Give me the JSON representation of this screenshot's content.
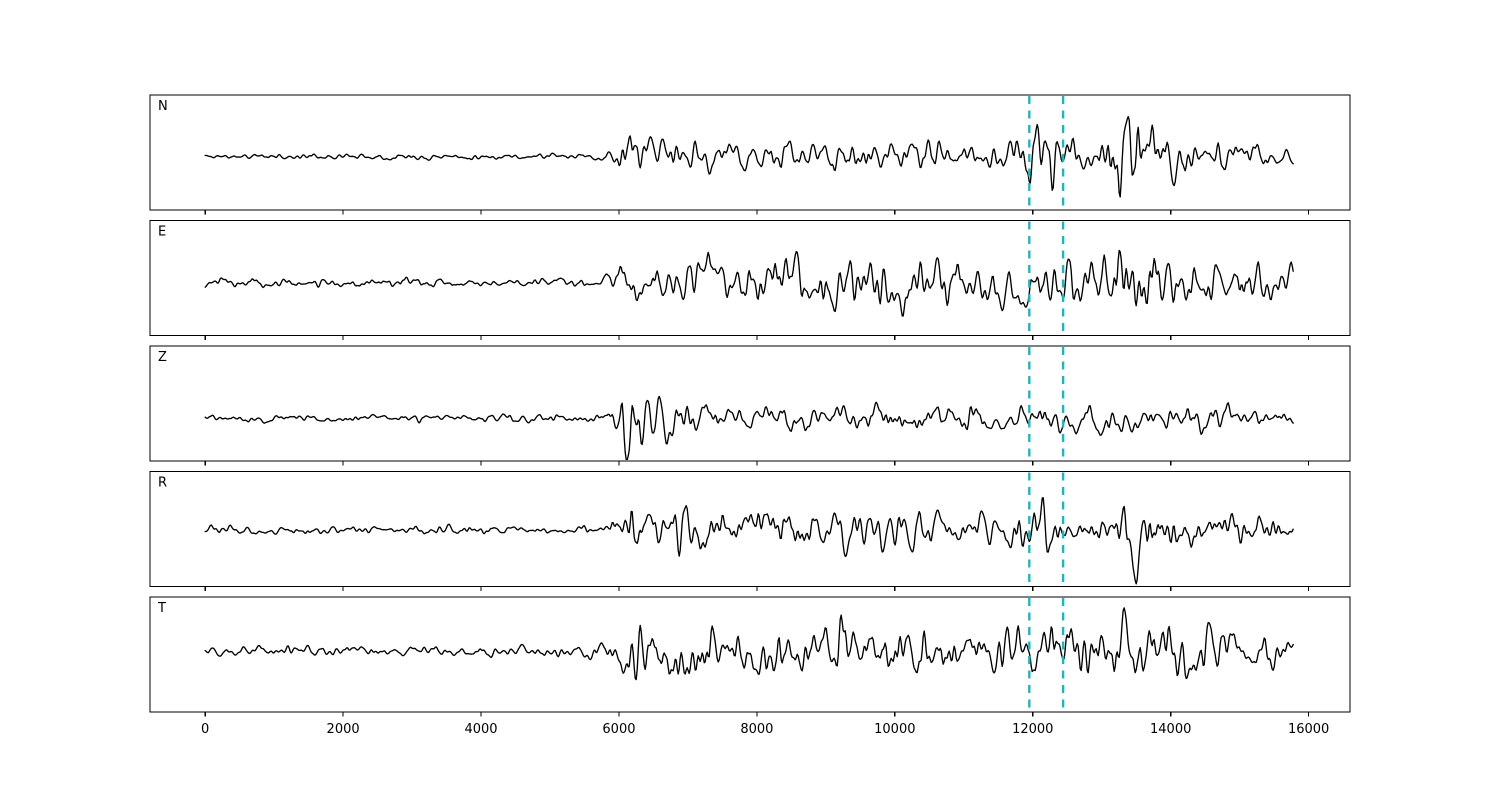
{
  "figure": {
    "background_color": "#ffffff",
    "description": "Five-panel seismogram waveform figure with components N, E, Z, R, T and two dashed cyan phase-pick marker lines"
  },
  "chart_data": {
    "type": "line",
    "title": "",
    "xlabel": "",
    "ylabel": "",
    "grid": false,
    "legend": "none",
    "x_ticks": [
      0,
      2000,
      4000,
      6000,
      8000,
      10000,
      12000,
      14000,
      16000
    ],
    "x_axis_range": [
      -800,
      16600
    ],
    "trace_x_range": [
      0,
      15784
    ],
    "trace_color": "#000000",
    "marker_lines": {
      "x_values": [
        11950,
        12440
      ],
      "color": "#10bcc2",
      "line_style": "dashed"
    },
    "panels": [
      {
        "label": "N",
        "seed": 11,
        "baseline_offset": 4,
        "envelope": [
          [
            0,
            2.5
          ],
          [
            5200,
            3
          ],
          [
            5750,
            3.5
          ],
          [
            5950,
            7
          ],
          [
            6080,
            24
          ],
          [
            6180,
            27
          ],
          [
            6350,
            15
          ],
          [
            6800,
            16
          ],
          [
            7400,
            12
          ],
          [
            8000,
            13
          ],
          [
            8600,
            12
          ],
          [
            9300,
            17
          ],
          [
            9800,
            13
          ],
          [
            10600,
            13
          ],
          [
            11300,
            12
          ],
          [
            11800,
            16
          ],
          [
            12000,
            30
          ],
          [
            12250,
            29
          ],
          [
            12500,
            21
          ],
          [
            12800,
            13
          ],
          [
            13050,
            15
          ],
          [
            13220,
            52
          ],
          [
            13400,
            42
          ],
          [
            13700,
            26
          ],
          [
            14100,
            19
          ],
          [
            14600,
            15
          ],
          [
            15100,
            12
          ],
          [
            15784,
            9
          ]
        ]
      },
      {
        "label": "E",
        "seed": 23,
        "baseline_offset": 5,
        "envelope": [
          [
            0,
            3.5
          ],
          [
            900,
            5
          ],
          [
            1500,
            4
          ],
          [
            2600,
            4.5
          ],
          [
            3800,
            3.5
          ],
          [
            5300,
            4
          ],
          [
            5800,
            6
          ],
          [
            6050,
            18
          ],
          [
            6250,
            24
          ],
          [
            6600,
            16
          ],
          [
            7000,
            21
          ],
          [
            7350,
            27
          ],
          [
            7800,
            17
          ],
          [
            8400,
            25
          ],
          [
            8800,
            29
          ],
          [
            9300,
            24
          ],
          [
            9650,
            33
          ],
          [
            10100,
            22
          ],
          [
            10600,
            26
          ],
          [
            11100,
            19
          ],
          [
            11600,
            21
          ],
          [
            12000,
            30
          ],
          [
            12350,
            26
          ],
          [
            12700,
            21
          ],
          [
            13000,
            24
          ],
          [
            13300,
            43
          ],
          [
            13550,
            31
          ],
          [
            14000,
            21
          ],
          [
            14500,
            17
          ],
          [
            15000,
            21
          ],
          [
            15400,
            18
          ],
          [
            15784,
            14
          ]
        ]
      },
      {
        "label": "Z",
        "seed": 37,
        "baseline_offset": 15,
        "envelope": [
          [
            0,
            3
          ],
          [
            1200,
            3.5
          ],
          [
            2500,
            3
          ],
          [
            4000,
            3.5
          ],
          [
            5400,
            4
          ],
          [
            5800,
            9
          ],
          [
            6000,
            20
          ],
          [
            6110,
            54
          ],
          [
            6250,
            28
          ],
          [
            6400,
            22
          ],
          [
            6600,
            28
          ],
          [
            6900,
            16
          ],
          [
            7300,
            13
          ],
          [
            7800,
            14
          ],
          [
            8400,
            12
          ],
          [
            9000,
            14
          ],
          [
            9600,
            12
          ],
          [
            10300,
            13
          ],
          [
            11000,
            12
          ],
          [
            11700,
            13
          ],
          [
            12200,
            13
          ],
          [
            12900,
            12
          ],
          [
            13600,
            12
          ],
          [
            14300,
            12
          ],
          [
            15000,
            11
          ],
          [
            15784,
            8
          ]
        ]
      },
      {
        "label": "R",
        "seed": 53,
        "baseline_offset": 1,
        "envelope": [
          [
            0,
            3.5
          ],
          [
            1000,
            4.5
          ],
          [
            2200,
            3.5
          ],
          [
            3600,
            4
          ],
          [
            5200,
            3.5
          ],
          [
            5750,
            5
          ],
          [
            6000,
            14
          ],
          [
            6180,
            26
          ],
          [
            6500,
            17
          ],
          [
            6900,
            21
          ],
          [
            7400,
            15
          ],
          [
            7900,
            17
          ],
          [
            8400,
            19
          ],
          [
            9000,
            15
          ],
          [
            9500,
            18
          ],
          [
            10200,
            15
          ],
          [
            10800,
            16
          ],
          [
            11400,
            13
          ],
          [
            11850,
            17
          ],
          [
            12050,
            38
          ],
          [
            12250,
            30
          ],
          [
            12500,
            16
          ],
          [
            12900,
            15
          ],
          [
            13200,
            20
          ],
          [
            13400,
            46
          ],
          [
            13600,
            36
          ],
          [
            13950,
            21
          ],
          [
            14400,
            16
          ],
          [
            14900,
            13
          ],
          [
            15400,
            13
          ],
          [
            15784,
            10
          ]
        ]
      },
      {
        "label": "T",
        "seed": 71,
        "baseline_offset": -3,
        "envelope": [
          [
            0,
            4
          ],
          [
            1100,
            5
          ],
          [
            2400,
            4
          ],
          [
            3700,
            4.5
          ],
          [
            5200,
            4.5
          ],
          [
            5800,
            8
          ],
          [
            6050,
            22
          ],
          [
            6250,
            28
          ],
          [
            6600,
            21
          ],
          [
            7000,
            26
          ],
          [
            7400,
            21
          ],
          [
            7900,
            24
          ],
          [
            8300,
            28
          ],
          [
            8800,
            21
          ],
          [
            9200,
            30
          ],
          [
            9700,
            22
          ],
          [
            10300,
            23
          ],
          [
            10900,
            19
          ],
          [
            11400,
            20
          ],
          [
            11900,
            28
          ],
          [
            12100,
            36
          ],
          [
            12450,
            34
          ],
          [
            12750,
            24
          ],
          [
            13050,
            21
          ],
          [
            13250,
            44
          ],
          [
            13500,
            34
          ],
          [
            13900,
            31
          ],
          [
            14400,
            26
          ],
          [
            14900,
            19
          ],
          [
            15400,
            15
          ],
          [
            15784,
            11
          ]
        ]
      }
    ]
  }
}
